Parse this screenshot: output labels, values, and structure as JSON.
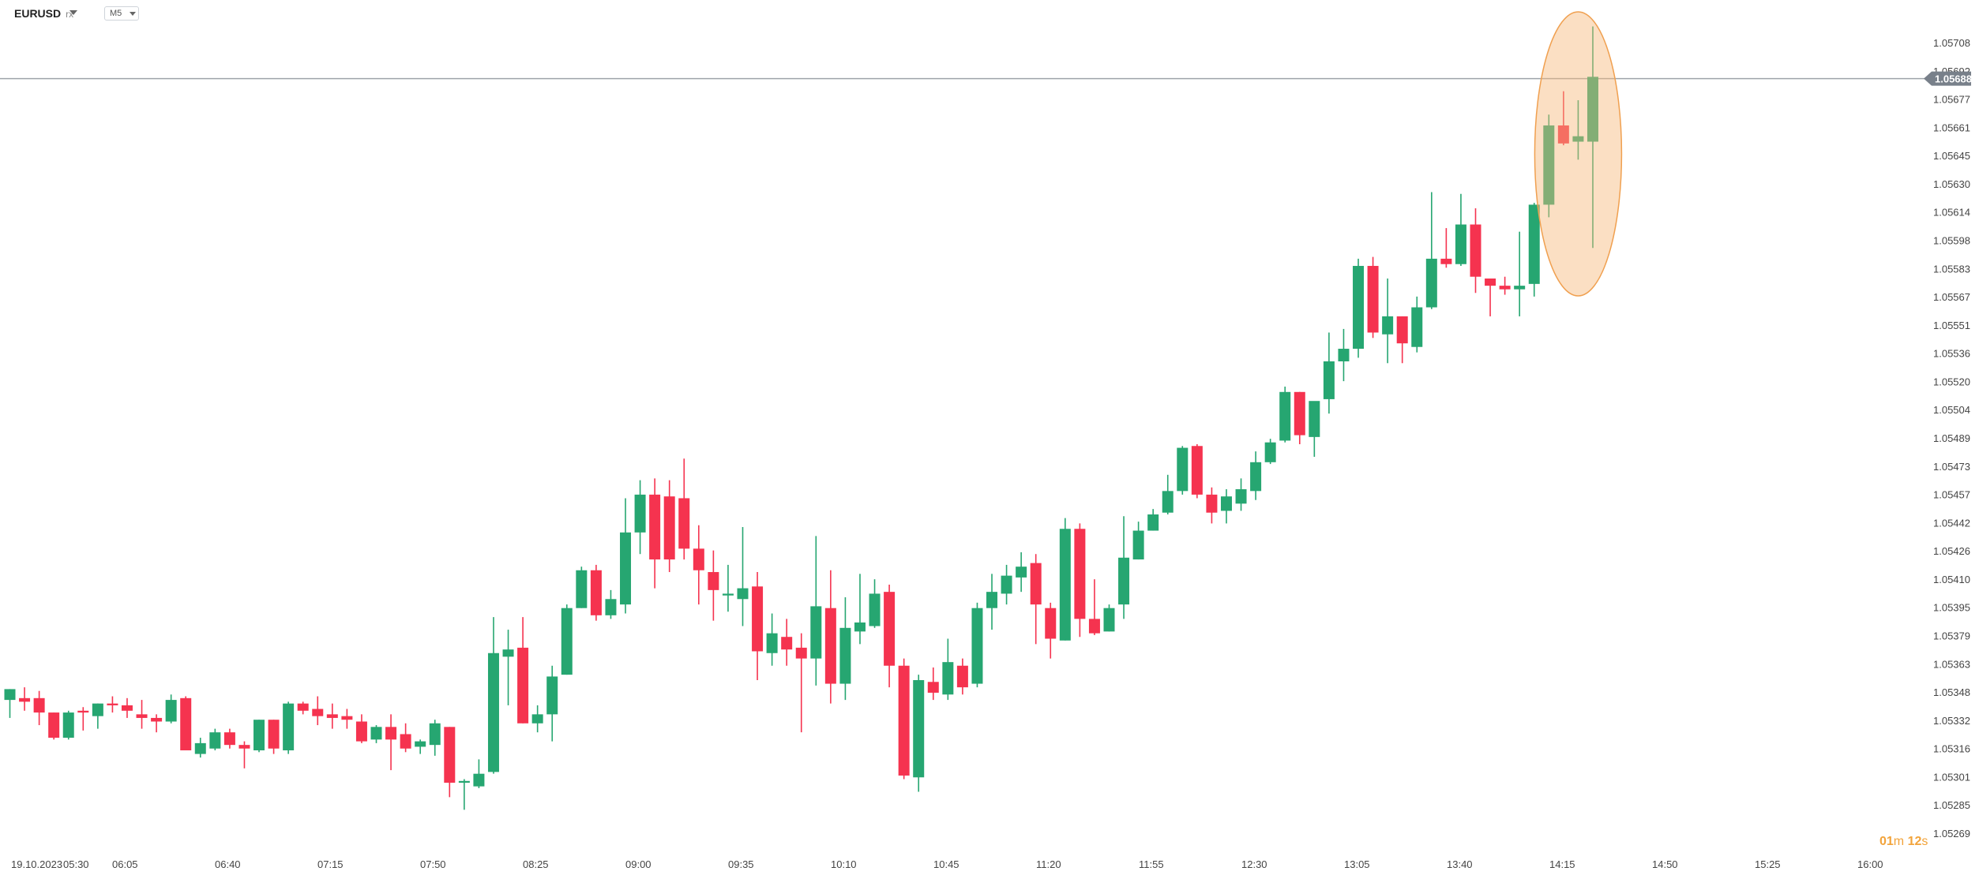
{
  "header": {
    "symbol": "EURUSD",
    "symbol_suffix": "rx",
    "timeframe": "M5"
  },
  "price_tag": "1.05688",
  "countdown": {
    "minutes": "01",
    "min_unit": "m",
    "seconds": "12",
    "sec_unit": "s"
  },
  "colors": {
    "up": "#26a671",
    "down": "#f5334f",
    "highlight": "#f6b77a",
    "grid_line": "#9ea4aa"
  },
  "chart_data": {
    "type": "candlestick",
    "instrument": "EURUSD",
    "timeframe": "M5",
    "y_ticks": [
      "1.05708",
      "1.05692",
      "1.05677",
      "1.05661",
      "1.05645",
      "1.05630",
      "1.05614",
      "1.05598",
      "1.05583",
      "1.05567",
      "1.05551",
      "1.05536",
      "1.05520",
      "1.05504",
      "1.05489",
      "1.05473",
      "1.05457",
      "1.05442",
      "1.05426",
      "1.05410",
      "1.05395",
      "1.05379",
      "1.05363",
      "1.05348",
      "1.05332",
      "1.05316",
      "1.05301",
      "1.05285",
      "1.05269"
    ],
    "ylim": [
      1.05269,
      1.05708
    ],
    "x_ticks": [
      "19.10.2023",
      "05:30",
      "06:05",
      "06:40",
      "07:15",
      "07:50",
      "08:25",
      "09:00",
      "09:35",
      "10:10",
      "10:45",
      "11:20",
      "11:55",
      "12:30",
      "13:05",
      "13:40",
      "14:15",
      "14:50",
      "15:25",
      "16:00"
    ],
    "current_price": 1.05688,
    "highlight": "last candles circled",
    "candles": [
      {
        "o": 1.05343,
        "h": 1.05349,
        "l": 1.05333,
        "c": 1.05349
      },
      {
        "o": 1.05344,
        "h": 1.0535,
        "l": 1.05337,
        "c": 1.05342
      },
      {
        "o": 1.05344,
        "h": 1.05348,
        "l": 1.05329,
        "c": 1.05336
      },
      {
        "o": 1.05336,
        "h": 1.05336,
        "l": 1.05321,
        "c": 1.05322
      },
      {
        "o": 1.05322,
        "h": 1.05337,
        "l": 1.05321,
        "c": 1.05336
      },
      {
        "o": 1.05337,
        "h": 1.05339,
        "l": 1.05326,
        "c": 1.05336
      },
      {
        "o": 1.05334,
        "h": 1.05341,
        "l": 1.05327,
        "c": 1.05341
      },
      {
        "o": 1.05341,
        "h": 1.05345,
        "l": 1.05336,
        "c": 1.0534
      },
      {
        "o": 1.0534,
        "h": 1.05344,
        "l": 1.05333,
        "c": 1.05337
      },
      {
        "o": 1.05335,
        "h": 1.05343,
        "l": 1.05327,
        "c": 1.05333
      },
      {
        "o": 1.05333,
        "h": 1.05335,
        "l": 1.05325,
        "c": 1.05331
      },
      {
        "o": 1.05331,
        "h": 1.05346,
        "l": 1.0533,
        "c": 1.05343
      },
      {
        "o": 1.05344,
        "h": 1.05345,
        "l": 1.05315,
        "c": 1.05315
      },
      {
        "o": 1.05313,
        "h": 1.05322,
        "l": 1.05311,
        "c": 1.05319
      },
      {
        "o": 1.05316,
        "h": 1.05327,
        "l": 1.05315,
        "c": 1.05325
      },
      {
        "o": 1.05325,
        "h": 1.05327,
        "l": 1.05316,
        "c": 1.05318
      },
      {
        "o": 1.05318,
        "h": 1.0532,
        "l": 1.05305,
        "c": 1.05316
      },
      {
        "o": 1.05315,
        "h": 1.05332,
        "l": 1.05314,
        "c": 1.05332
      },
      {
        "o": 1.05332,
        "h": 1.05332,
        "l": 1.05313,
        "c": 1.05316
      },
      {
        "o": 1.05315,
        "h": 1.05342,
        "l": 1.05313,
        "c": 1.05341
      },
      {
        "o": 1.05341,
        "h": 1.05342,
        "l": 1.05335,
        "c": 1.05337
      },
      {
        "o": 1.05338,
        "h": 1.05345,
        "l": 1.05329,
        "c": 1.05334
      },
      {
        "o": 1.05335,
        "h": 1.05341,
        "l": 1.05327,
        "c": 1.05333
      },
      {
        "o": 1.05334,
        "h": 1.05338,
        "l": 1.05327,
        "c": 1.05332
      },
      {
        "o": 1.05331,
        "h": 1.05335,
        "l": 1.05319,
        "c": 1.0532
      },
      {
        "o": 1.05321,
        "h": 1.05329,
        "l": 1.05319,
        "c": 1.05328
      },
      {
        "o": 1.05328,
        "h": 1.05335,
        "l": 1.05304,
        "c": 1.05321
      },
      {
        "o": 1.05324,
        "h": 1.0533,
        "l": 1.05314,
        "c": 1.05316
      },
      {
        "o": 1.05317,
        "h": 1.05321,
        "l": 1.05313,
        "c": 1.0532
      },
      {
        "o": 1.05318,
        "h": 1.05332,
        "l": 1.05312,
        "c": 1.0533
      },
      {
        "o": 1.05328,
        "h": 1.05328,
        "l": 1.05289,
        "c": 1.05297
      },
      {
        "o": 1.05297,
        "h": 1.05299,
        "l": 1.05282,
        "c": 1.05298
      },
      {
        "o": 1.05295,
        "h": 1.0531,
        "l": 1.05294,
        "c": 1.05302
      },
      {
        "o": 1.05303,
        "h": 1.05389,
        "l": 1.05302,
        "c": 1.05369
      },
      {
        "o": 1.05367,
        "h": 1.05382,
        "l": 1.0534,
        "c": 1.05371
      },
      {
        "o": 1.05372,
        "h": 1.05389,
        "l": 1.0533,
        "c": 1.0533
      },
      {
        "o": 1.0533,
        "h": 1.0534,
        "l": 1.05325,
        "c": 1.05335
      },
      {
        "o": 1.05335,
        "h": 1.05362,
        "l": 1.0532,
        "c": 1.05356
      },
      {
        "o": 1.05357,
        "h": 1.05396,
        "l": 1.05357,
        "c": 1.05394
      },
      {
        "o": 1.05394,
        "h": 1.05417,
        "l": 1.05394,
        "c": 1.05415
      },
      {
        "o": 1.05415,
        "h": 1.05418,
        "l": 1.05387,
        "c": 1.0539
      },
      {
        "o": 1.0539,
        "h": 1.05404,
        "l": 1.05388,
        "c": 1.05399
      },
      {
        "o": 1.05396,
        "h": 1.05455,
        "l": 1.05391,
        "c": 1.05436
      },
      {
        "o": 1.05436,
        "h": 1.05465,
        "l": 1.05424,
        "c": 1.05457
      },
      {
        "o": 1.05457,
        "h": 1.05466,
        "l": 1.05405,
        "c": 1.05421
      },
      {
        "o": 1.05456,
        "h": 1.05465,
        "l": 1.05414,
        "c": 1.05421
      },
      {
        "o": 1.05455,
        "h": 1.05477,
        "l": 1.05421,
        "c": 1.05427
      },
      {
        "o": 1.05427,
        "h": 1.0544,
        "l": 1.05396,
        "c": 1.05415
      },
      {
        "o": 1.05414,
        "h": 1.05426,
        "l": 1.05387,
        "c": 1.05404
      },
      {
        "o": 1.05401,
        "h": 1.05418,
        "l": 1.05392,
        "c": 1.05402
      },
      {
        "o": 1.05399,
        "h": 1.05439,
        "l": 1.05384,
        "c": 1.05405
      },
      {
        "o": 1.05406,
        "h": 1.05414,
        "l": 1.05354,
        "c": 1.0537
      },
      {
        "o": 1.05369,
        "h": 1.05391,
        "l": 1.05362,
        "c": 1.0538
      },
      {
        "o": 1.05378,
        "h": 1.05388,
        "l": 1.05362,
        "c": 1.05371
      },
      {
        "o": 1.05372,
        "h": 1.0538,
        "l": 1.05325,
        "c": 1.05366
      },
      {
        "o": 1.05366,
        "h": 1.05434,
        "l": 1.05351,
        "c": 1.05395
      },
      {
        "o": 1.05394,
        "h": 1.05415,
        "l": 1.05341,
        "c": 1.05352
      },
      {
        "o": 1.05352,
        "h": 1.054,
        "l": 1.05343,
        "c": 1.05383
      },
      {
        "o": 1.05381,
        "h": 1.05413,
        "l": 1.05374,
        "c": 1.05386
      },
      {
        "o": 1.05384,
        "h": 1.0541,
        "l": 1.05383,
        "c": 1.05402
      },
      {
        "o": 1.05403,
        "h": 1.05407,
        "l": 1.0535,
        "c": 1.05362
      },
      {
        "o": 1.05362,
        "h": 1.05366,
        "l": 1.05299,
        "c": 1.05301
      },
      {
        "o": 1.053,
        "h": 1.05357,
        "l": 1.05292,
        "c": 1.05354
      },
      {
        "o": 1.05353,
        "h": 1.05361,
        "l": 1.05343,
        "c": 1.05347
      },
      {
        "o": 1.05346,
        "h": 1.05377,
        "l": 1.05343,
        "c": 1.05364
      },
      {
        "o": 1.05362,
        "h": 1.05366,
        "l": 1.05346,
        "c": 1.0535
      },
      {
        "o": 1.05352,
        "h": 1.05397,
        "l": 1.0535,
        "c": 1.05394
      },
      {
        "o": 1.05394,
        "h": 1.05413,
        "l": 1.05382,
        "c": 1.05403
      },
      {
        "o": 1.05402,
        "h": 1.05418,
        "l": 1.05396,
        "c": 1.05412
      },
      {
        "o": 1.05411,
        "h": 1.05425,
        "l": 1.05403,
        "c": 1.05417
      },
      {
        "o": 1.05419,
        "h": 1.05424,
        "l": 1.05374,
        "c": 1.05396
      },
      {
        "o": 1.05394,
        "h": 1.05397,
        "l": 1.05366,
        "c": 1.05377
      },
      {
        "o": 1.05376,
        "h": 1.05444,
        "l": 1.05376,
        "c": 1.05438
      },
      {
        "o": 1.05438,
        "h": 1.05441,
        "l": 1.05378,
        "c": 1.05388
      },
      {
        "o": 1.05388,
        "h": 1.0541,
        "l": 1.05379,
        "c": 1.0538
      },
      {
        "o": 1.05381,
        "h": 1.05396,
        "l": 1.05381,
        "c": 1.05394
      },
      {
        "o": 1.05396,
        "h": 1.05445,
        "l": 1.05388,
        "c": 1.05422
      },
      {
        "o": 1.05421,
        "h": 1.05442,
        "l": 1.05421,
        "c": 1.05437
      },
      {
        "o": 1.05437,
        "h": 1.05449,
        "l": 1.05437,
        "c": 1.05446
      },
      {
        "o": 1.05447,
        "h": 1.05468,
        "l": 1.05446,
        "c": 1.05459
      },
      {
        "o": 1.05459,
        "h": 1.05484,
        "l": 1.05457,
        "c": 1.05483
      },
      {
        "o": 1.05484,
        "h": 1.05485,
        "l": 1.05455,
        "c": 1.05457
      },
      {
        "o": 1.05457,
        "h": 1.05461,
        "l": 1.05441,
        "c": 1.05447
      },
      {
        "o": 1.05448,
        "h": 1.0546,
        "l": 1.05441,
        "c": 1.05456
      },
      {
        "o": 1.05452,
        "h": 1.05466,
        "l": 1.05448,
        "c": 1.0546
      },
      {
        "o": 1.05459,
        "h": 1.05481,
        "l": 1.05454,
        "c": 1.05475
      },
      {
        "o": 1.05475,
        "h": 1.05488,
        "l": 1.05474,
        "c": 1.05486
      },
      {
        "o": 1.05487,
        "h": 1.05517,
        "l": 1.05486,
        "c": 1.05514
      },
      {
        "o": 1.05514,
        "h": 1.05514,
        "l": 1.05485,
        "c": 1.0549
      },
      {
        "o": 1.05489,
        "h": 1.05505,
        "l": 1.05478,
        "c": 1.05509
      },
      {
        "o": 1.0551,
        "h": 1.05547,
        "l": 1.05502,
        "c": 1.05531
      },
      {
        "o": 1.05531,
        "h": 1.05549,
        "l": 1.0552,
        "c": 1.05538
      },
      {
        "o": 1.05538,
        "h": 1.05588,
        "l": 1.05533,
        "c": 1.05584
      },
      {
        "o": 1.05584,
        "h": 1.05589,
        "l": 1.05544,
        "c": 1.05547
      },
      {
        "o": 1.05546,
        "h": 1.05577,
        "l": 1.0553,
        "c": 1.05556
      },
      {
        "o": 1.05556,
        "h": 1.05556,
        "l": 1.0553,
        "c": 1.05541
      },
      {
        "o": 1.05539,
        "h": 1.05567,
        "l": 1.05536,
        "c": 1.05561
      },
      {
        "o": 1.05561,
        "h": 1.05625,
        "l": 1.0556,
        "c": 1.05588
      },
      {
        "o": 1.05588,
        "h": 1.05605,
        "l": 1.05583,
        "c": 1.05585
      },
      {
        "o": 1.05585,
        "h": 1.05624,
        "l": 1.05584,
        "c": 1.05607
      },
      {
        "o": 1.05607,
        "h": 1.05616,
        "l": 1.05569,
        "c": 1.05578
      },
      {
        "o": 1.05577,
        "h": 1.05577,
        "l": 1.05556,
        "c": 1.05573
      },
      {
        "o": 1.05573,
        "h": 1.05578,
        "l": 1.05568,
        "c": 1.05571
      },
      {
        "o": 1.05571,
        "h": 1.05603,
        "l": 1.05556,
        "c": 1.05573
      },
      {
        "o": 1.05574,
        "h": 1.05619,
        "l": 1.05567,
        "c": 1.05618
      },
      {
        "o": 1.05618,
        "h": 1.05668,
        "l": 1.05611,
        "c": 1.05662
      },
      {
        "o": 1.05662,
        "h": 1.05681,
        "l": 1.05651,
        "c": 1.05652
      },
      {
        "o": 1.05653,
        "h": 1.05676,
        "l": 1.05643,
        "c": 1.05656
      },
      {
        "o": 1.05653,
        "h": 1.05717,
        "l": 1.05594,
        "c": 1.05689
      }
    ]
  }
}
